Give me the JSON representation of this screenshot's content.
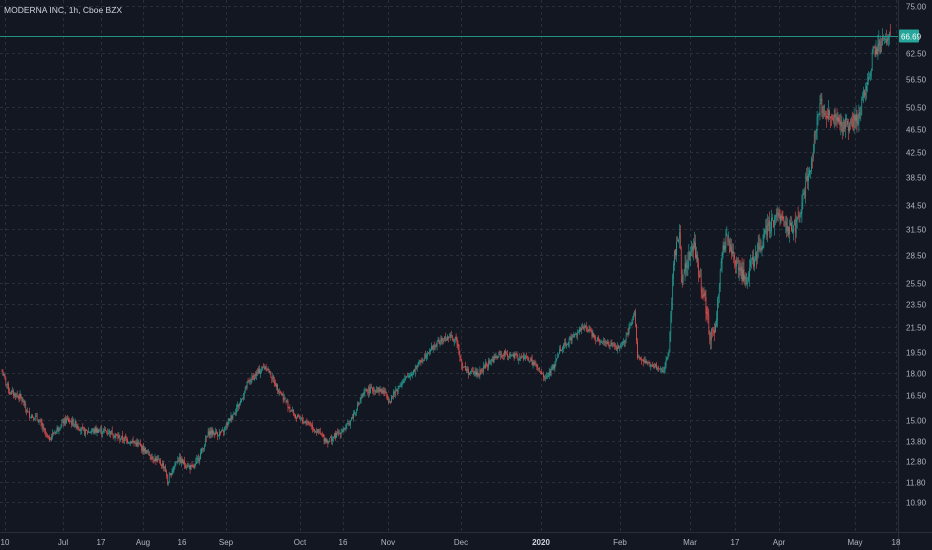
{
  "header": {
    "symbol_label": "MODERNA INC, 1h, Cboe BZX"
  },
  "colors": {
    "background": "#131722",
    "grid": "#2a2e39",
    "up": "#26a69a",
    "down": "#ef5350",
    "price_line": "#26a69a",
    "axis_text": "#b2b5be"
  },
  "price_label": {
    "value": "66.69"
  },
  "chart_data": {
    "type": "candlestick",
    "title": "",
    "log_scale": true,
    "grid": true,
    "ylim": [
      10.2,
      75.5
    ],
    "y_ticks": [
      "75.00",
      "62.50",
      "56.50",
      "50.50",
      "46.50",
      "42.50",
      "38.50",
      "34.50",
      "31.50",
      "28.50",
      "25.50",
      "23.50",
      "21.50",
      "19.50",
      "18.00",
      "16.50",
      "15.00",
      "13.80",
      "12.80",
      "11.80",
      "10.90"
    ],
    "x_ticks": [
      {
        "label": "10",
        "bold": false
      },
      {
        "label": "Jul",
        "bold": false
      },
      {
        "label": "17",
        "bold": false
      },
      {
        "label": "Aug",
        "bold": false
      },
      {
        "label": "16",
        "bold": false
      },
      {
        "label": "Sep",
        "bold": false
      },
      {
        "label": "Oct",
        "bold": false
      },
      {
        "label": "16",
        "bold": false
      },
      {
        "label": "Nov",
        "bold": false
      },
      {
        "label": "Dec",
        "bold": false
      },
      {
        "label": "2020",
        "bold": true
      },
      {
        "label": "Feb",
        "bold": false
      },
      {
        "label": "Mar",
        "bold": false
      },
      {
        "label": "17",
        "bold": false
      },
      {
        "label": "Apr",
        "bold": false
      },
      {
        "label": "May",
        "bold": false
      },
      {
        "label": "18",
        "bold": false
      }
    ],
    "x_range": [
      "2019-06-10",
      "2020-05-19"
    ],
    "path": [
      [
        "2019-06-10",
        18.1
      ],
      [
        "2019-06-13",
        16.7
      ],
      [
        "2019-06-17",
        16.4
      ],
      [
        "2019-06-20",
        15.4
      ],
      [
        "2019-06-24",
        15.0
      ],
      [
        "2019-06-28",
        13.9
      ],
      [
        "2019-07-02",
        14.6
      ],
      [
        "2019-07-05",
        15.0
      ],
      [
        "2019-07-09",
        14.7
      ],
      [
        "2019-07-12",
        14.3
      ],
      [
        "2019-07-17",
        14.4
      ],
      [
        "2019-07-22",
        14.3
      ],
      [
        "2019-07-25",
        14.0
      ],
      [
        "2019-07-30",
        13.8
      ],
      [
        "2019-08-02",
        13.6
      ],
      [
        "2019-08-06",
        13.1
      ],
      [
        "2019-08-09",
        12.8
      ],
      [
        "2019-08-12",
        12.5
      ],
      [
        "2019-08-13",
        11.7
      ],
      [
        "2019-08-15",
        12.4
      ],
      [
        "2019-08-17",
        12.9
      ],
      [
        "2019-08-20",
        12.6
      ],
      [
        "2019-08-23",
        12.4
      ],
      [
        "2019-08-26",
        13.2
      ],
      [
        "2019-08-29",
        14.3
      ],
      [
        "2019-09-03",
        14.2
      ],
      [
        "2019-09-06",
        15.0
      ],
      [
        "2019-09-10",
        16.0
      ],
      [
        "2019-09-13",
        17.3
      ],
      [
        "2019-09-18",
        18.2
      ],
      [
        "2019-09-20",
        18.5
      ],
      [
        "2019-09-24",
        17.2
      ],
      [
        "2019-09-27",
        16.3
      ],
      [
        "2019-10-02",
        15.1
      ],
      [
        "2019-10-07",
        14.8
      ],
      [
        "2019-10-10",
        14.3
      ],
      [
        "2019-10-14",
        13.8
      ],
      [
        "2019-10-18",
        14.2
      ],
      [
        "2019-10-22",
        14.7
      ],
      [
        "2019-10-26",
        16.0
      ],
      [
        "2019-10-29",
        16.8
      ],
      [
        "2019-11-02",
        16.9
      ],
      [
        "2019-11-05",
        16.7
      ],
      [
        "2019-11-07",
        16.2
      ],
      [
        "2019-11-11",
        17.2
      ],
      [
        "2019-11-15",
        17.9
      ],
      [
        "2019-11-19",
        18.8
      ],
      [
        "2019-11-22",
        19.6
      ],
      [
        "2019-11-26",
        20.3
      ],
      [
        "2019-11-30",
        20.7
      ],
      [
        "2019-12-03",
        20.4
      ],
      [
        "2019-12-05",
        18.5
      ],
      [
        "2019-12-08",
        18.0
      ],
      [
        "2019-12-12",
        18.0
      ],
      [
        "2019-12-15",
        18.7
      ],
      [
        "2019-12-19",
        19.2
      ],
      [
        "2019-12-22",
        19.4
      ],
      [
        "2019-12-26",
        19.1
      ],
      [
        "2019-12-30",
        19.1
      ],
      [
        "2020-01-02",
        18.6
      ],
      [
        "2020-01-06",
        17.6
      ],
      [
        "2020-01-09",
        18.2
      ],
      [
        "2020-01-12",
        19.8
      ],
      [
        "2020-01-16",
        20.5
      ],
      [
        "2020-01-19",
        21.2
      ],
      [
        "2020-01-22",
        21.5
      ],
      [
        "2020-01-26",
        20.6
      ],
      [
        "2020-01-30",
        20.2
      ],
      [
        "2020-02-03",
        19.8
      ],
      [
        "2020-02-06",
        20.3
      ],
      [
        "2020-02-08",
        21.5
      ],
      [
        "2020-02-10",
        22.8
      ],
      [
        "2020-02-11",
        19.0
      ],
      [
        "2020-02-14",
        18.7
      ],
      [
        "2020-02-18",
        18.4
      ],
      [
        "2020-02-21",
        18.2
      ],
      [
        "2020-02-23",
        19.5
      ],
      [
        "2020-02-25",
        28.0
      ],
      [
        "2020-02-27",
        31.5
      ],
      [
        "2020-02-28",
        26.0
      ],
      [
        "2020-03-02",
        28.5
      ],
      [
        "2020-03-04",
        29.5
      ],
      [
        "2020-03-06",
        26.0
      ],
      [
        "2020-03-08",
        24.0
      ],
      [
        "2020-03-10",
        20.5
      ],
      [
        "2020-03-12",
        21.5
      ],
      [
        "2020-03-14",
        27.0
      ],
      [
        "2020-03-16",
        30.5
      ],
      [
        "2020-03-18",
        29.0
      ],
      [
        "2020-03-21",
        27.0
      ],
      [
        "2020-03-24",
        25.8
      ],
      [
        "2020-03-26",
        27.5
      ],
      [
        "2020-03-29",
        29.0
      ],
      [
        "2020-04-01",
        31.5
      ],
      [
        "2020-04-04",
        32.5
      ],
      [
        "2020-04-07",
        33.5
      ],
      [
        "2020-04-09",
        31.5
      ],
      [
        "2020-04-12",
        31.8
      ],
      [
        "2020-04-15",
        35.5
      ],
      [
        "2020-04-18",
        40.5
      ],
      [
        "2020-04-20",
        47.5
      ],
      [
        "2020-04-22",
        51.0
      ],
      [
        "2020-04-24",
        49.0
      ],
      [
        "2020-04-27",
        48.0
      ],
      [
        "2020-04-30",
        47.0
      ],
      [
        "2020-05-04",
        47.5
      ],
      [
        "2020-05-06",
        48.2
      ],
      [
        "2020-05-08",
        52.0
      ],
      [
        "2020-05-11",
        59.0
      ],
      [
        "2020-05-12",
        62.5
      ],
      [
        "2020-05-14",
        63.5
      ],
      [
        "2020-05-15",
        64.5
      ],
      [
        "2020-05-18",
        66.0
      ],
      [
        "2020-05-19",
        66.69
      ]
    ]
  }
}
